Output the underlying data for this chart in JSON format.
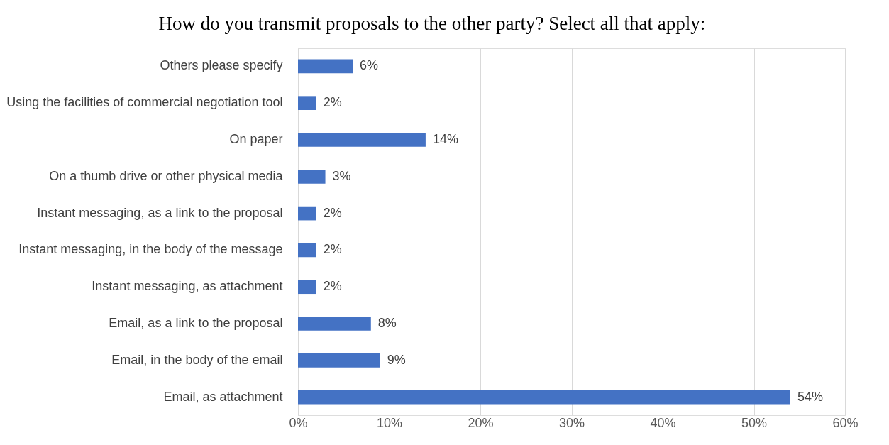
{
  "chart_data": {
    "type": "bar",
    "orientation": "horizontal",
    "title": "How do you transmit proposals to the other party? Select all that apply:",
    "categories": [
      "Others please specify",
      "Using the facilities of commercial negotiation tool",
      "On paper",
      "On a thumb drive or other physical media",
      "Instant messaging, as a link to the proposal",
      "Instant messaging, in the body of the message",
      "Instant messaging, as attachment",
      "Email, as a link to the proposal",
      "Email, in the body of the email",
      "Email, as attachment"
    ],
    "values": [
      6,
      2,
      14,
      3,
      2,
      2,
      2,
      8,
      9,
      54
    ],
    "value_labels": [
      "6%",
      "2%",
      "14%",
      "3%",
      "2%",
      "2%",
      "2%",
      "8%",
      "9%",
      "54%"
    ],
    "color": "#4472c4",
    "xlim": [
      0,
      60
    ],
    "xticks": [
      {
        "value": 0,
        "label": "0%"
      },
      {
        "value": 10,
        "label": "10%"
      },
      {
        "value": 20,
        "label": "20%"
      },
      {
        "value": 30,
        "label": "30%"
      },
      {
        "value": 40,
        "label": "40%"
      },
      {
        "value": 50,
        "label": "50%"
      },
      {
        "value": 60,
        "label": "60%"
      }
    ],
    "grid": "x"
  }
}
